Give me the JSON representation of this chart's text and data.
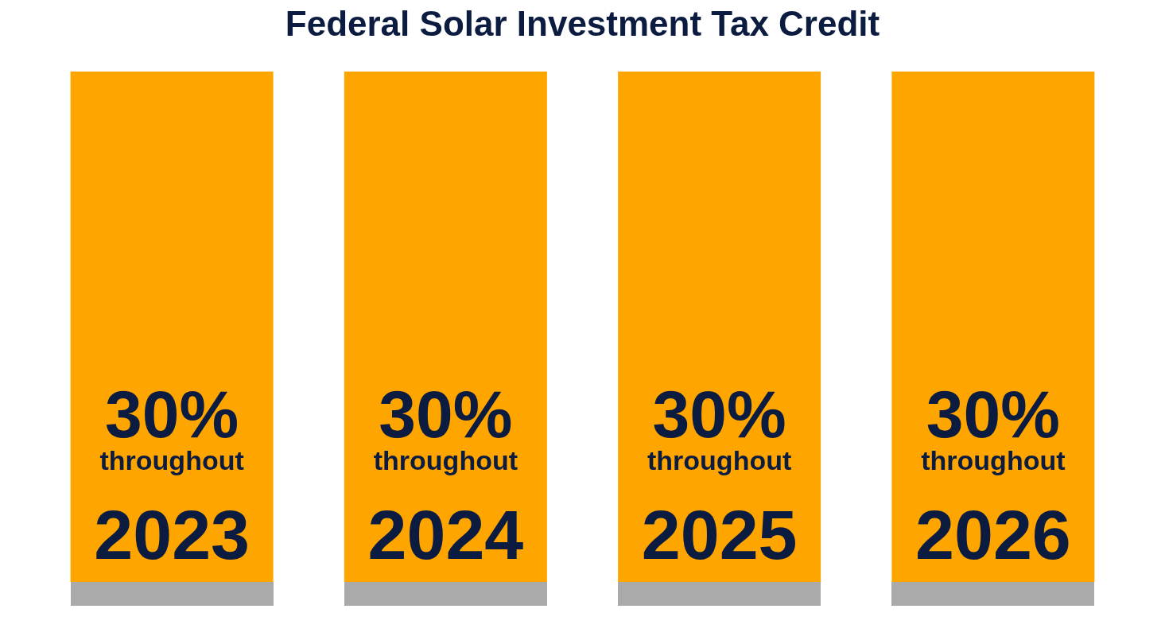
{
  "chart_data": {
    "type": "bar",
    "title": "Federal Solar Investment Tax Credit",
    "categories": [
      "2023",
      "2024",
      "2025",
      "2026"
    ],
    "values": [
      30,
      30,
      30,
      30
    ],
    "value_labels": [
      "30%\nthroughout",
      "30%\nthroughout",
      "30%\nthroughout",
      "30%\nthroughout"
    ],
    "color": "#ffa500",
    "ylim": [
      0,
      30
    ],
    "tick_labels": "x"
  }
}
